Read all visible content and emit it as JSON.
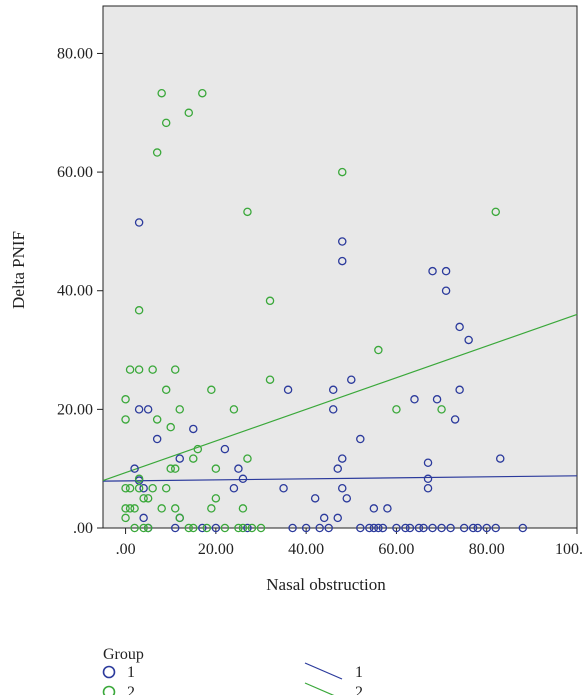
{
  "chart_data": {
    "type": "scatter",
    "xlabel": "Nasal obstruction",
    "ylabel": "Delta PNIF",
    "xlim": [
      -5,
      100
    ],
    "ylim": [
      0,
      88
    ],
    "x_ticks": [
      ".00",
      "20.00",
      "40.00",
      "60.00",
      "80.00",
      "100.00"
    ],
    "x_tick_values": [
      0,
      20,
      40,
      60,
      80,
      100
    ],
    "y_ticks": [
      ".00",
      "20.00",
      "40.00",
      "60.00",
      "80.00"
    ],
    "y_tick_values": [
      0,
      20,
      40,
      60,
      80
    ],
    "plot_background": "#e8e8e8",
    "grid": false,
    "legend_title": "Group",
    "legend_position": "bottom",
    "series": [
      {
        "name": "1",
        "color": "#2b3a9c",
        "points": [
          [
            3,
            51.5
          ],
          [
            2,
            10
          ],
          [
            3,
            8
          ],
          [
            4,
            6.7
          ],
          [
            5,
            20
          ],
          [
            3,
            20
          ],
          [
            4,
            1.7
          ],
          [
            5,
            0
          ],
          [
            7,
            15
          ],
          [
            11,
            0
          ],
          [
            12,
            1.7
          ],
          [
            12,
            11.7
          ],
          [
            15,
            16.7
          ],
          [
            17,
            0
          ],
          [
            20,
            0
          ],
          [
            22,
            13.3
          ],
          [
            24,
            6.7
          ],
          [
            25,
            10
          ],
          [
            26,
            8.3
          ],
          [
            27,
            0
          ],
          [
            35,
            6.7
          ],
          [
            36,
            23.3
          ],
          [
            37,
            0
          ],
          [
            40,
            0
          ],
          [
            42,
            5
          ],
          [
            43,
            0
          ],
          [
            44,
            1.7
          ],
          [
            45,
            0
          ],
          [
            46,
            20
          ],
          [
            46,
            23.3
          ],
          [
            47,
            10
          ],
          [
            47,
            1.7
          ],
          [
            48,
            48.3
          ],
          [
            48,
            45
          ],
          [
            48,
            11.7
          ],
          [
            48,
            6.7
          ],
          [
            49,
            5
          ],
          [
            50,
            25
          ],
          [
            52,
            15
          ],
          [
            52,
            0
          ],
          [
            54,
            0
          ],
          [
            55,
            0
          ],
          [
            55,
            3.3
          ],
          [
            56,
            0
          ],
          [
            57,
            0
          ],
          [
            58,
            3.3
          ],
          [
            60,
            0
          ],
          [
            62,
            0
          ],
          [
            63,
            0
          ],
          [
            64,
            21.7
          ],
          [
            65,
            0
          ],
          [
            66,
            0
          ],
          [
            67,
            11
          ],
          [
            67,
            8.3
          ],
          [
            67,
            6.7
          ],
          [
            68,
            43.3
          ],
          [
            68,
            0
          ],
          [
            69,
            21.7
          ],
          [
            70,
            0
          ],
          [
            71,
            43.3
          ],
          [
            71,
            40
          ],
          [
            72,
            0
          ],
          [
            73,
            18.3
          ],
          [
            74,
            33.9
          ],
          [
            74,
            23.3
          ],
          [
            75,
            0
          ],
          [
            76,
            31.7
          ],
          [
            77,
            0
          ],
          [
            78,
            0
          ],
          [
            80,
            0
          ],
          [
            82,
            0
          ],
          [
            83,
            11.7
          ],
          [
            88,
            0
          ]
        ]
      },
      {
        "name": "2",
        "color": "#3aa83a",
        "points": [
          [
            0,
            21.7
          ],
          [
            0,
            18.3
          ],
          [
            0,
            6.7
          ],
          [
            0,
            3.3
          ],
          [
            0,
            1.7
          ],
          [
            1,
            26.7
          ],
          [
            1,
            6.7
          ],
          [
            1,
            3.3
          ],
          [
            2,
            3.3
          ],
          [
            2,
            0
          ],
          [
            3,
            36.7
          ],
          [
            3,
            26.7
          ],
          [
            3,
            8.3
          ],
          [
            3,
            6.7
          ],
          [
            4,
            5
          ],
          [
            4,
            0
          ],
          [
            5,
            5
          ],
          [
            5,
            0
          ],
          [
            6,
            26.7
          ],
          [
            6,
            6.7
          ],
          [
            7,
            63.3
          ],
          [
            7,
            18.3
          ],
          [
            8,
            73.3
          ],
          [
            8,
            3.3
          ],
          [
            9,
            68.3
          ],
          [
            9,
            23.3
          ],
          [
            9,
            6.7
          ],
          [
            10,
            17
          ],
          [
            10,
            10
          ],
          [
            11,
            26.7
          ],
          [
            11,
            10
          ],
          [
            11,
            3.3
          ],
          [
            12,
            20
          ],
          [
            12,
            1.7
          ],
          [
            14,
            70
          ],
          [
            14,
            0
          ],
          [
            15,
            11.7
          ],
          [
            15,
            0
          ],
          [
            16,
            13.3
          ],
          [
            17,
            73.3
          ],
          [
            18,
            0
          ],
          [
            19,
            23.3
          ],
          [
            19,
            3.3
          ],
          [
            20,
            10
          ],
          [
            20,
            5
          ],
          [
            22,
            0
          ],
          [
            24,
            20
          ],
          [
            25,
            0
          ],
          [
            26,
            3.3
          ],
          [
            26,
            0
          ],
          [
            27,
            53.3
          ],
          [
            27,
            11.7
          ],
          [
            28,
            0
          ],
          [
            30,
            0
          ],
          [
            32,
            38.3
          ],
          [
            32,
            25
          ],
          [
            48,
            60
          ],
          [
            56,
            30
          ],
          [
            60,
            20
          ],
          [
            70,
            20
          ],
          [
            82,
            53.3
          ]
        ]
      }
    ],
    "fit_lines": [
      {
        "name": "1",
        "color": "#2b3a9c",
        "points": [
          [
            -5,
            7.9
          ],
          [
            100,
            8.8
          ]
        ]
      },
      {
        "name": "2",
        "color": "#3aa83a",
        "points": [
          [
            -5,
            8.0
          ],
          [
            100,
            36.0
          ]
        ]
      }
    ]
  }
}
